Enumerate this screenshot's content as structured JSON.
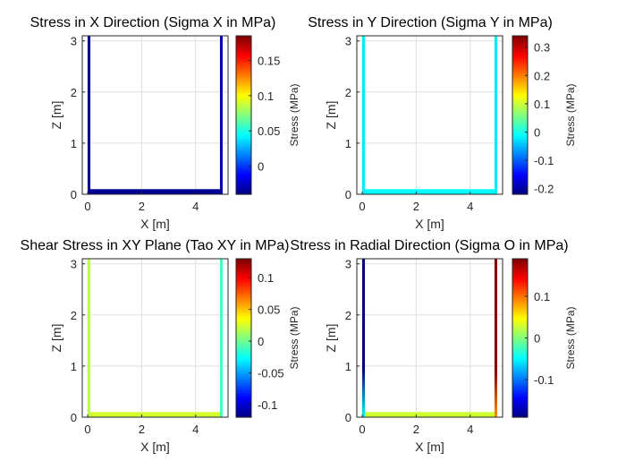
{
  "chart_data": [
    {
      "type": "heatmap",
      "title": "Stress in X Direction (Sigma X in MPa)",
      "xlabel": "X [m]",
      "ylabel": "Z [m]",
      "xlim": [
        -0.2,
        5.2
      ],
      "ylim": [
        0,
        3.1
      ],
      "xticks": [
        "0",
        "2",
        "4"
      ],
      "yticks": [
        "0",
        "1",
        "2",
        "3"
      ],
      "colorbar": {
        "label": "Stress (MPa)",
        "range": [
          -0.04,
          0.185
        ],
        "ticks": [
          "0",
          "0.05",
          "0.1",
          "0.15"
        ]
      },
      "structure": {
        "left_wall": {
          "x": 0.05,
          "z": [
            0.05,
            3.1
          ],
          "stress": -0.035
        },
        "right_wall": {
          "x": 4.95,
          "z": [
            0.05,
            3.1
          ],
          "stress": -0.03
        },
        "floor": {
          "x": [
            0.05,
            4.95
          ],
          "z": 0.05,
          "stress": -0.035
        }
      }
    },
    {
      "type": "heatmap",
      "title": "Stress in Y Direction (Sigma Y in MPa)",
      "xlabel": "X [m]",
      "ylabel": "Z [m]",
      "xlim": [
        -0.2,
        5.2
      ],
      "ylim": [
        0,
        3.1
      ],
      "xticks": [
        "0",
        "2",
        "4"
      ],
      "yticks": [
        "0",
        "1",
        "2",
        "3"
      ],
      "colorbar": {
        "label": "Stress (MPa)",
        "range": [
          -0.22,
          0.34
        ],
        "ticks": [
          "-0.2",
          "-0.1",
          "0",
          "0.1",
          "0.2",
          "0.3"
        ]
      },
      "structure": {
        "left_wall": {
          "x": 0.05,
          "z": [
            0.05,
            3.1
          ],
          "stress": -0.02
        },
        "right_wall": {
          "x": 4.95,
          "z": [
            0.05,
            3.1
          ],
          "stress": -0.02
        },
        "floor": {
          "x": [
            0.05,
            4.95
          ],
          "z": 0.05,
          "stress": -0.01
        }
      }
    },
    {
      "type": "heatmap",
      "title": "Shear Stress in XY Plane (Tao XY in MPa)",
      "xlabel": "X [m]",
      "ylabel": "Z [m]",
      "xlim": [
        -0.2,
        5.2
      ],
      "ylim": [
        0,
        3.1
      ],
      "xticks": [
        "0",
        "2",
        "4"
      ],
      "yticks": [
        "0",
        "1",
        "2",
        "3"
      ],
      "colorbar": {
        "label": "Stress (MPa)",
        "range": [
          -0.12,
          0.13
        ],
        "ticks": [
          "-0.1",
          "-0.05",
          "0",
          "0.05",
          "0.1"
        ]
      },
      "structure": {
        "left_wall": {
          "x": 0.05,
          "z": [
            0.05,
            3.1
          ],
          "stress": 0.02
        },
        "right_wall": {
          "x": 4.95,
          "z": [
            0.05,
            3.1
          ],
          "stress": -0.01
        },
        "floor": {
          "x": [
            0.05,
            4.95
          ],
          "z": 0.05,
          "stress": 0.025
        }
      }
    },
    {
      "type": "heatmap",
      "title": "Stress in Radial Direction (Sigma O in MPa)",
      "xlabel": "X [m]",
      "ylabel": "Z [m]",
      "xlim": [
        -0.2,
        5.2
      ],
      "ylim": [
        0,
        3.1
      ],
      "xticks": [
        "0",
        "2",
        "4"
      ],
      "yticks": [
        "0",
        "1",
        "2",
        "3"
      ],
      "colorbar": {
        "label": "Stress (MPa)",
        "range": [
          -0.19,
          0.19
        ],
        "ticks": [
          "-0.1",
          "0",
          "0.1"
        ]
      },
      "structure": {
        "left_wall": {
          "x": 0.05,
          "z": [
            0.05,
            3.1
          ],
          "stress_gradient": [
            -0.05,
            -0.19
          ]
        },
        "right_wall": {
          "x": 4.95,
          "z": [
            0.05,
            3.1
          ],
          "stress_gradient": [
            0.09,
            0.19
          ]
        },
        "floor": {
          "x": [
            0.05,
            4.95
          ],
          "z": 0.05,
          "stress": 0.03
        }
      }
    }
  ]
}
